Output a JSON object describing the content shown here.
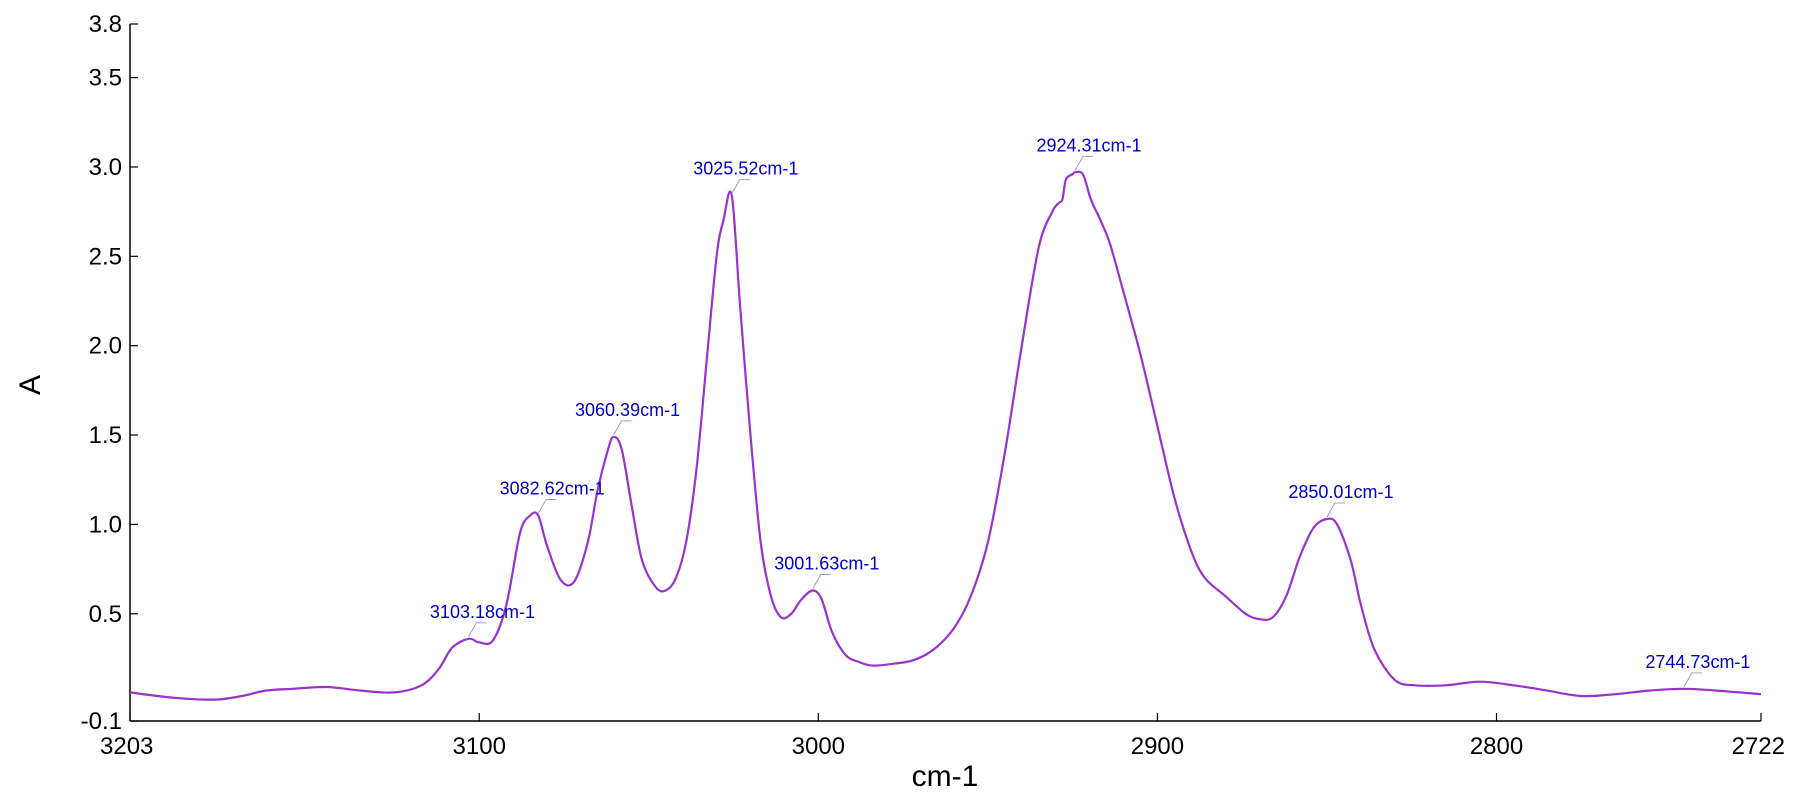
{
  "chart_data": {
    "type": "line",
    "title": "",
    "xlabel": "cm-1",
    "ylabel": "A",
    "xlim": [
      3203,
      2722
    ],
    "ylim": [
      -0.1,
      3.8
    ],
    "x_reversed": true,
    "grid": false,
    "line_color": "#9933cc",
    "label_color": "#0000cc",
    "xticks": [
      3203,
      3100,
      3000,
      2900,
      2800,
      2722
    ],
    "xtick_labels": [
      "3203",
      "3100",
      "3000",
      "2900",
      "2800",
      "2722"
    ],
    "yticks": [
      -0.1,
      0.5,
      1.0,
      1.5,
      2.0,
      2.5,
      3.0,
      3.5,
      3.8
    ],
    "ytick_labels": [
      "-0.1",
      "0.5",
      "1.0",
      "1.5",
      "2.0",
      "2.5",
      "3.0",
      "3.5",
      "3.8"
    ],
    "series": [
      {
        "x": [
          3203,
          3190,
          3178,
          3170,
          3163,
          3155,
          3145,
          3135,
          3125,
          3117,
          3112,
          3108,
          3103.18,
          3100,
          3096,
          3092,
          3088,
          3085,
          3082.62,
          3080,
          3076,
          3072,
          3068,
          3065,
          3062,
          3060.39,
          3058,
          3055,
          3052,
          3048,
          3045,
          3042,
          3039,
          3036,
          3033,
          3030,
          3028,
          3025.52,
          3023,
          3020,
          3017,
          3014,
          3011,
          3008,
          3005,
          3001.63,
          2999,
          2996,
          2992,
          2988,
          2984,
          2978,
          2972,
          2966,
          2960,
          2955,
          2950,
          2945,
          2940,
          2935,
          2931,
          2929,
          2928,
          2927,
          2925,
          2924.31,
          2922,
          2920,
          2919,
          2917,
          2914,
          2910,
          2905,
          2900,
          2895,
          2890,
          2886,
          2880,
          2874,
          2870,
          2866,
          2862,
          2858,
          2854,
          2850.01,
          2847,
          2843,
          2840,
          2836,
          2830,
          2824,
          2815,
          2805,
          2795,
          2785,
          2775,
          2765,
          2755,
          2744.73,
          2735,
          2722
        ],
        "y": [
          0.06,
          0.03,
          0.02,
          0.04,
          0.07,
          0.08,
          0.09,
          0.07,
          0.06,
          0.1,
          0.19,
          0.31,
          0.36,
          0.34,
          0.35,
          0.55,
          0.95,
          1.05,
          1.05,
          0.88,
          0.69,
          0.68,
          0.9,
          1.2,
          1.42,
          1.49,
          1.42,
          1.1,
          0.8,
          0.65,
          0.63,
          0.7,
          0.9,
          1.3,
          1.9,
          2.5,
          2.7,
          2.84,
          2.2,
          1.5,
          0.9,
          0.6,
          0.48,
          0.5,
          0.58,
          0.63,
          0.58,
          0.4,
          0.27,
          0.23,
          0.21,
          0.22,
          0.24,
          0.3,
          0.42,
          0.6,
          0.9,
          1.4,
          2.0,
          2.55,
          2.75,
          2.8,
          2.82,
          2.93,
          2.96,
          2.97,
          2.96,
          2.84,
          2.79,
          2.71,
          2.57,
          2.3,
          1.95,
          1.55,
          1.15,
          0.85,
          0.7,
          0.6,
          0.5,
          0.47,
          0.48,
          0.6,
          0.82,
          0.98,
          1.03,
          1.0,
          0.8,
          0.55,
          0.3,
          0.13,
          0.1,
          0.1,
          0.12,
          0.1,
          0.07,
          0.04,
          0.05,
          0.07,
          0.08,
          0.07,
          0.05
        ]
      }
    ],
    "annotations": [
      {
        "text": "3103.18cm-1",
        "x": 3103.18,
        "y": 0.36
      },
      {
        "text": "3082.62cm-1",
        "x": 3082.62,
        "y": 1.05
      },
      {
        "text": "3060.39cm-1",
        "x": 3060.39,
        "y": 1.49
      },
      {
        "text": "3025.52cm-1",
        "x": 3025.52,
        "y": 2.84
      },
      {
        "text": "3001.63cm-1",
        "x": 3001.63,
        "y": 0.63
      },
      {
        "text": "2924.31cm-1",
        "x": 2924.31,
        "y": 2.97
      },
      {
        "text": "2850.01cm-1",
        "x": 2850.01,
        "y": 1.03
      },
      {
        "text": "2744.73cm-1",
        "x": 2744.73,
        "y": 0.08
      }
    ]
  }
}
